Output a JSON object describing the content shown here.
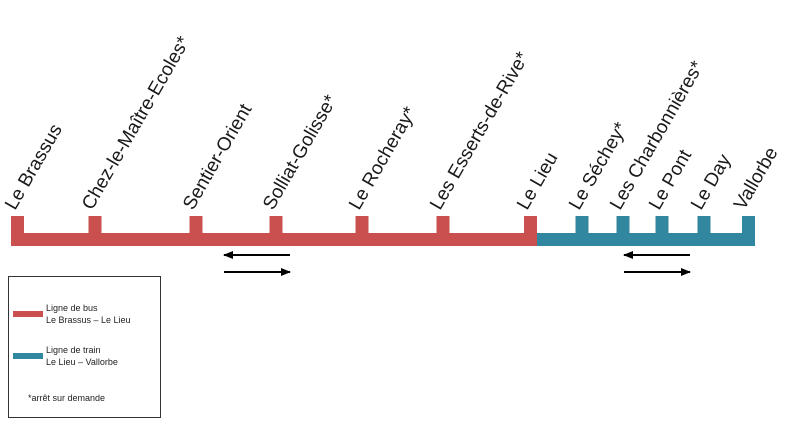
{
  "colors": {
    "bus": "#c9504f",
    "train": "#31879f",
    "text": "#1a1a1a",
    "arrow": "#000000"
  },
  "stops": [
    {
      "name": "Le Brassus",
      "line": "bus"
    },
    {
      "name": "Chez-le-Maître-Ecoles*",
      "line": "bus"
    },
    {
      "name": "Sentier-Orient",
      "line": "bus"
    },
    {
      "name": "Solliat-Golisse*",
      "line": "bus"
    },
    {
      "name": "Le Rocheray*",
      "line": "bus"
    },
    {
      "name": "Les Esserts-de-Rive*",
      "line": "bus"
    },
    {
      "name": "Le Lieu",
      "line": "bus"
    },
    {
      "name": "Le Séchey*",
      "line": "train"
    },
    {
      "name": "Les Charbonnières*",
      "line": "train"
    },
    {
      "name": "Le Pont",
      "line": "train"
    },
    {
      "name": "Le Day",
      "line": "train"
    },
    {
      "name": "Vallorbe",
      "line": "train"
    }
  ],
  "legend": {
    "bus": {
      "line1": "Ligne de bus",
      "line2": "Le Brassus – Le Lieu"
    },
    "train": {
      "line1": "Ligne de train",
      "line2": "Le Lieu – Vallorbe"
    },
    "note": "*arrêt sur demande"
  }
}
